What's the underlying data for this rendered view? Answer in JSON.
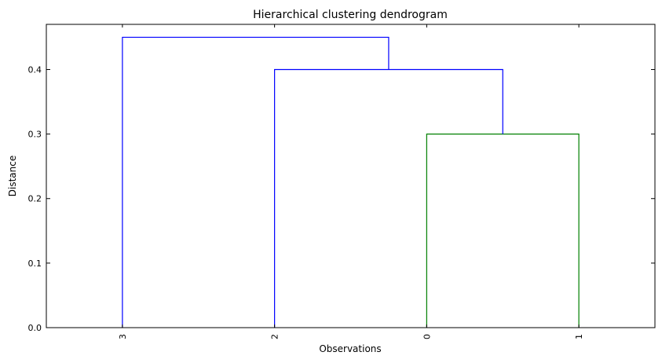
{
  "chart_data": {
    "type": "dendrogram",
    "title": "Hierarchical clustering dendrogram",
    "xlabel": "Observations",
    "ylabel": "Distance",
    "ylim": [
      0,
      0.47
    ],
    "yticks": [
      0.0,
      0.1,
      0.2,
      0.3,
      0.4
    ],
    "leaves": [
      "3",
      "2",
      "0",
      "1"
    ],
    "links": [
      {
        "left": "0",
        "right": "1",
        "height": 0.3,
        "color": "#008000"
      },
      {
        "left": "2",
        "right": "{0,1}",
        "height": 0.4,
        "color": "#0000ff"
      },
      {
        "left": "3",
        "right": "{2,0,1}",
        "height": 0.45,
        "color": "#0000ff"
      }
    ],
    "grid": false
  }
}
